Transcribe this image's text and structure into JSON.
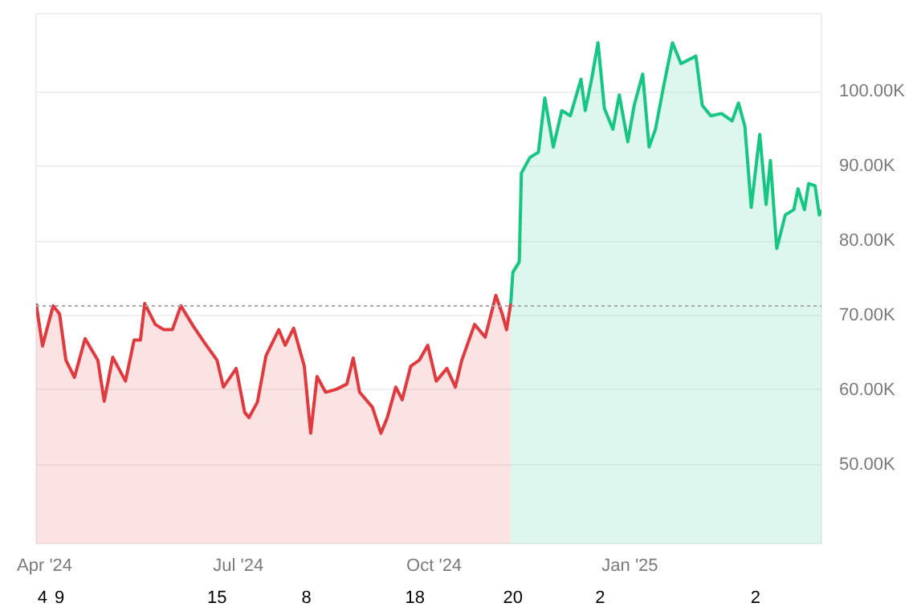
{
  "chart_data": {
    "type": "area",
    "xlim": [
      "2024-03-28",
      "2025-04-01"
    ],
    "ylim": [
      39.4,
      110.5
    ],
    "yticks": [
      {
        "value": 50,
        "label": "50.00K"
      },
      {
        "value": 60,
        "label": "60.00K"
      },
      {
        "value": 70,
        "label": "70.00K"
      },
      {
        "value": 80,
        "label": "80.00K"
      },
      {
        "value": 90,
        "label": "90.00K"
      },
      {
        "value": 100,
        "label": "100.00K"
      }
    ],
    "xticks": [
      {
        "value": "2024-04-01",
        "label": "Apr '24"
      },
      {
        "value": "2024-07-01",
        "label": "Jul '24"
      },
      {
        "value": "2024-10-01",
        "label": "Oct '24"
      },
      {
        "value": "2025-01-01",
        "label": "Jan '25"
      }
    ],
    "x2ticks": [
      {
        "value": "2024-03-31",
        "label": "4"
      },
      {
        "value": "2024-04-08",
        "label": "9"
      },
      {
        "value": "2024-06-21",
        "label": "15"
      },
      {
        "value": "2024-08-02",
        "label": "8"
      },
      {
        "value": "2024-09-22",
        "label": "18"
      },
      {
        "value": "2024-11-07",
        "label": "20"
      },
      {
        "value": "2024-12-18",
        "label": "2"
      },
      {
        "value": "2025-03-01",
        "label": "2"
      }
    ],
    "x2lim": [
      "2024-03-28",
      "2025-04-01"
    ],
    "grid": "y",
    "ref_lines": [
      {
        "axis": "y",
        "value": 71.3,
        "color": "#aaaaaa",
        "line_style": "dotted"
      }
    ],
    "series": [
      {
        "color": "#e03a3e",
        "x": [
          "2024-03-28",
          "2024-03-31",
          "2024-04-02",
          "2024-04-05",
          "2024-04-08",
          "2024-04-11",
          "2024-04-15",
          "2024-04-20",
          "2024-04-26",
          "2024-04-29",
          "2024-05-03",
          "2024-05-09",
          "2024-05-13",
          "2024-05-16",
          "2024-05-18",
          "2024-05-23",
          "2024-05-27",
          "2024-05-31",
          "2024-06-04",
          "2024-06-10",
          "2024-06-15",
          "2024-06-21",
          "2024-06-24",
          "2024-06-30",
          "2024-07-04",
          "2024-07-06",
          "2024-07-10",
          "2024-07-14",
          "2024-07-20",
          "2024-07-23",
          "2024-07-27",
          "2024-08-01",
          "2024-08-04",
          "2024-08-07",
          "2024-08-11",
          "2024-08-16",
          "2024-08-21",
          "2024-08-24",
          "2024-08-27",
          "2024-09-02",
          "2024-09-06",
          "2024-09-09",
          "2024-09-13",
          "2024-09-16",
          "2024-09-20",
          "2024-09-24",
          "2024-09-28",
          "2024-10-02",
          "2024-10-07",
          "2024-10-11",
          "2024-10-14",
          "2024-10-20",
          "2024-10-25",
          "2024-10-30",
          "2024-11-02",
          "2024-11-04",
          "2024-11-06"
        ],
        "values": [
          71.6,
          65.9,
          68.1,
          71.3,
          70.2,
          64.0,
          61.7,
          66.9,
          64.0,
          58.5,
          64.4,
          61.2,
          66.7,
          66.7,
          71.6,
          68.8,
          68.1,
          68.1,
          71.3,
          68.5,
          66.4,
          64.0,
          60.4,
          62.9,
          57.0,
          56.3,
          58.4,
          64.6,
          68.1,
          66.0,
          68.3,
          63.2,
          54.2,
          61.8,
          59.7,
          60.1,
          60.8,
          64.3,
          59.7,
          57.7,
          54.2,
          56.3,
          60.4,
          58.7,
          63.2,
          64.0,
          66.0,
          61.2,
          62.9,
          60.4,
          64.0,
          68.8,
          67.1,
          72.7,
          70.2,
          68.1,
          71.6
        ]
      },
      {
        "color": "#16c784",
        "x": [
          "2024-11-06",
          "2024-11-07",
          "2024-11-10",
          "2024-11-11",
          "2024-11-15",
          "2024-11-19",
          "2024-11-22",
          "2024-11-26",
          "2024-11-30",
          "2024-12-04",
          "2024-12-09",
          "2024-12-11",
          "2024-12-14",
          "2024-12-17",
          "2024-12-20",
          "2024-12-24",
          "2024-12-27",
          "2024-12-31",
          "2025-01-03",
          "2025-01-07",
          "2025-01-10",
          "2025-01-13",
          "2025-01-17",
          "2025-01-21",
          "2025-01-25",
          "2025-02-01",
          "2025-02-04",
          "2025-02-08",
          "2025-02-13",
          "2025-02-18",
          "2025-02-21",
          "2025-02-24",
          "2025-02-27",
          "2025-03-03",
          "2025-03-06",
          "2025-03-08",
          "2025-03-11",
          "2025-03-15",
          "2025-03-19",
          "2025-03-21",
          "2025-03-24",
          "2025-03-26",
          "2025-03-29",
          "2025-03-31",
          "2025-04-01"
        ],
        "values": [
          71.6,
          75.8,
          77.2,
          89.1,
          91.2,
          91.9,
          99.2,
          92.6,
          97.5,
          96.8,
          101.7,
          97.5,
          101.7,
          106.6,
          97.8,
          95.0,
          99.6,
          93.3,
          98.2,
          102.4,
          92.6,
          95.0,
          101.0,
          106.6,
          103.8,
          104.8,
          98.2,
          96.8,
          97.1,
          96.1,
          98.5,
          95.4,
          84.5,
          94.3,
          84.9,
          90.8,
          79.0,
          83.5,
          84.2,
          87.0,
          84.2,
          87.7,
          87.4,
          83.5,
          84.2
        ]
      }
    ]
  }
}
